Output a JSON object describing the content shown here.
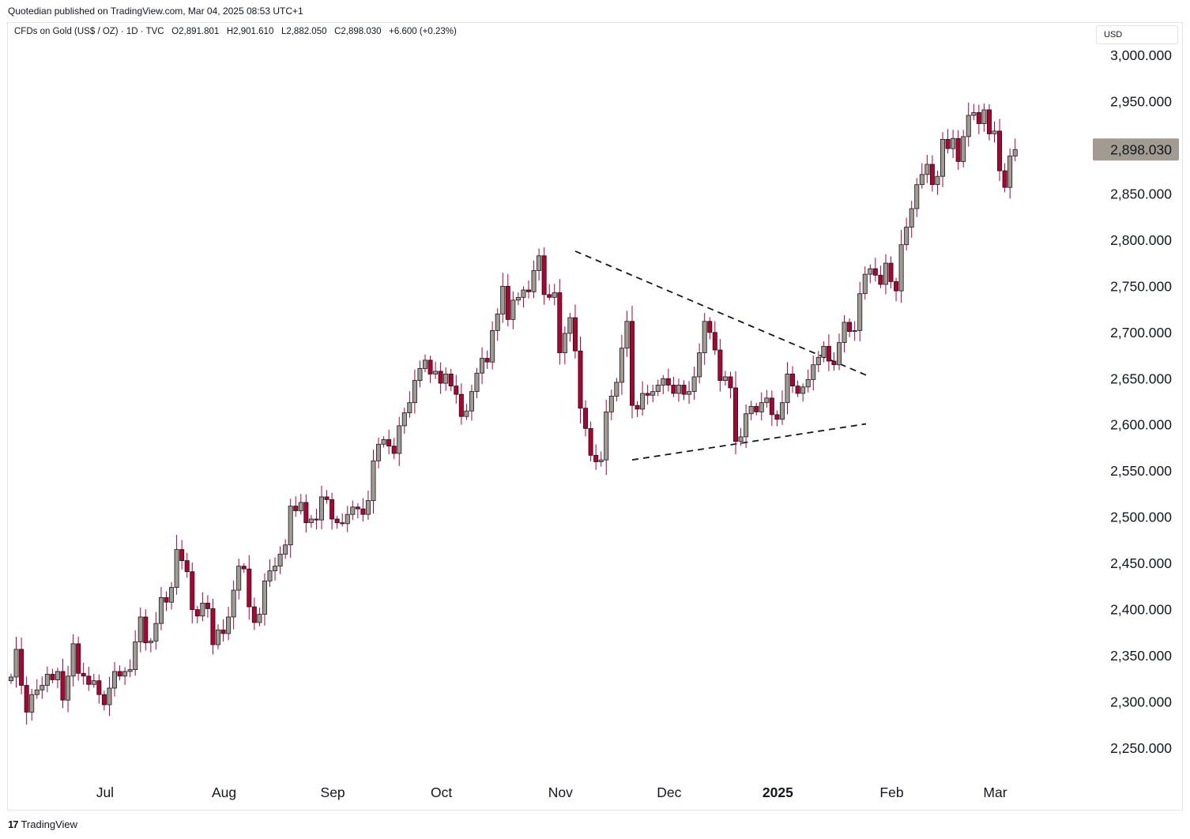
{
  "header": {
    "publisher_line": "Quotedian published on TradingView.com, Mar 04, 2025 08:53 UTC+1"
  },
  "legend": {
    "symbol": "CFDs on Gold (US$ / OZ) · 1D · TVC",
    "open": "O2,891.801",
    "high": "H2,901.610",
    "low": "L2,882.050",
    "close": "C2,898.030",
    "change": "+6.600 (+0.23%)"
  },
  "price_axis": {
    "currency": "USD",
    "last_price_label": "2,898.030",
    "last_price_color": "#a29b91"
  },
  "footer": {
    "brand": "TradingView",
    "brand_mark": "17"
  },
  "colors": {
    "up": "#a29b91",
    "down": "#b2002f",
    "wick": "#b2002f",
    "outline": "#131722"
  },
  "chart_data": {
    "type": "candlestick",
    "title": "",
    "ylim": [
      2210,
      3030
    ],
    "yticks": [
      3000,
      2950,
      2900,
      2850,
      2800,
      2750,
      2700,
      2650,
      2600,
      2550,
      2500,
      2450,
      2400,
      2350,
      2300,
      2250
    ],
    "ytick_labels": [
      "3,000.000",
      "2,950.000",
      "2,900.000",
      "2,850.000",
      "2,800.000",
      "2,750.000",
      "2,700.000",
      "2,650.000",
      "2,600.000",
      "2,550.000",
      "2,500.000",
      "2,450.000",
      "2,400.000",
      "2,350.000",
      "2,300.000",
      "2,250.000"
    ],
    "xticks": [
      {
        "label": "Jul",
        "index": 18,
        "bold": false
      },
      {
        "label": "Aug",
        "index": 41,
        "bold": false
      },
      {
        "label": "Sep",
        "index": 62,
        "bold": false
      },
      {
        "label": "Oct",
        "index": 83,
        "bold": false
      },
      {
        "label": "Nov",
        "index": 106,
        "bold": false
      },
      {
        "label": "Dec",
        "index": 127,
        "bold": false
      },
      {
        "label": "2025",
        "index": 148,
        "bold": true
      },
      {
        "label": "Feb",
        "index": 170,
        "bold": false
      },
      {
        "label": "Mar",
        "index": 190,
        "bold": false
      }
    ],
    "closes": [
      2327,
      2357,
      2318,
      2289,
      2308,
      2313,
      2318,
      2330,
      2324,
      2333,
      2302,
      2328,
      2363,
      2331,
      2328,
      2319,
      2323,
      2308,
      2297,
      2315,
      2333,
      2328,
      2333,
      2335,
      2365,
      2392,
      2364,
      2366,
      2385,
      2413,
      2408,
      2424,
      2465,
      2453,
      2441,
      2400,
      2393,
      2407,
      2401,
      2362,
      2378,
      2374,
      2392,
      2421,
      2447,
      2444,
      2403,
      2386,
      2395,
      2431,
      2442,
      2447,
      2460,
      2470,
      2512,
      2507,
      2516,
      2494,
      2498,
      2497,
      2522,
      2519,
      2498,
      2494,
      2493,
      2503,
      2511,
      2509,
      2503,
      2518,
      2561,
      2579,
      2584,
      2577,
      2569,
      2599,
      2613,
      2624,
      2648,
      2661,
      2670,
      2655,
      2658,
      2645,
      2655,
      2642,
      2633,
      2609,
      2615,
      2636,
      2656,
      2672,
      2668,
      2702,
      2720,
      2750,
      2714,
      2735,
      2738,
      2746,
      2744,
      2767,
      2783,
      2741,
      2738,
      2743,
      2678,
      2699,
      2716,
      2680,
      2618,
      2596,
      2567,
      2560,
      2562,
      2614,
      2631,
      2646,
      2683,
      2712,
      2621,
      2617,
      2634,
      2632,
      2636,
      2643,
      2650,
      2643,
      2634,
      2643,
      2633,
      2636,
      2652,
      2678,
      2712,
      2700,
      2681,
      2648,
      2652,
      2640,
      2582,
      2587,
      2612,
      2620,
      2614,
      2624,
      2629,
      2611,
      2606,
      2624,
      2655,
      2642,
      2634,
      2641,
      2649,
      2665,
      2673,
      2685,
      2669,
      2665,
      2689,
      2711,
      2701,
      2702,
      2742,
      2763,
      2769,
      2762,
      2752,
      2775,
      2755,
      2745,
      2795,
      2814,
      2834,
      2860,
      2871,
      2882,
      2860,
      2869,
      2909,
      2899,
      2910,
      2885,
      2912,
      2935,
      2938,
      2926,
      2941,
      2915,
      2918,
      2875,
      2857,
      2891,
      2898
    ]
  }
}
